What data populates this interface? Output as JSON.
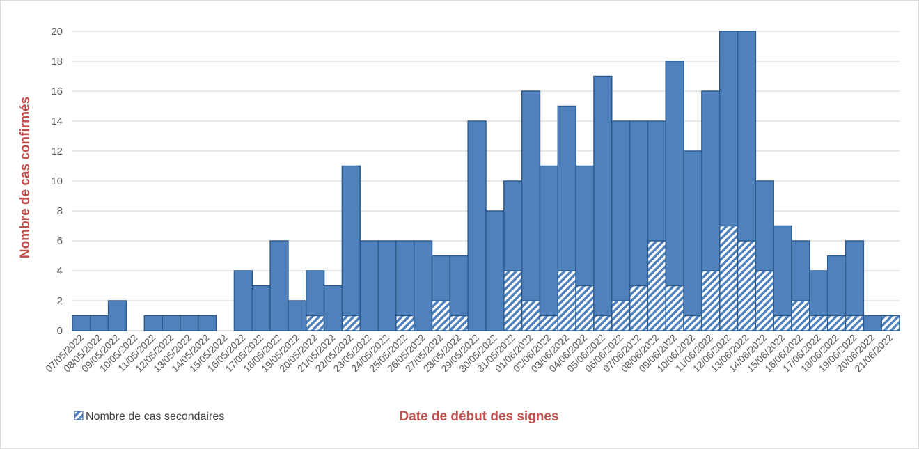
{
  "chart_data": {
    "type": "bar",
    "stacked_overlay": true,
    "xlabel": "Date de début des signes",
    "ylabel": "Nombre de cas confirmés",
    "ylim": [
      0,
      20
    ],
    "yticks": [
      0,
      2,
      4,
      6,
      8,
      10,
      12,
      14,
      16,
      18,
      20
    ],
    "grid": true,
    "legend_position": "bottom-left",
    "colors": {
      "bar": "#4f81bd",
      "bar_edge": "#2f5c8f",
      "title": "#c0504d",
      "grid": "#d9d9d9"
    },
    "categories": [
      "07/05/2022",
      "08/05/2022",
      "09/05/2022",
      "10/05/2022",
      "11/05/2022",
      "12/05/2022",
      "13/05/2022",
      "14/05/2022",
      "15/05/2022",
      "16/05/2022",
      "17/05/2022",
      "18/05/2022",
      "19/05/2022",
      "20/05/2022",
      "21/05/2022",
      "22/05/2022",
      "23/05/2022",
      "24/05/2022",
      "25/05/2022",
      "26/05/2022",
      "27/05/2022",
      "28/05/2022",
      "29/05/2022",
      "30/05/2022",
      "31/05/2022",
      "01/06/2022",
      "02/06/2022",
      "03/06/2022",
      "04/06/2022",
      "05/06/2022",
      "06/06/2022",
      "07/06/2022",
      "08/06/2022",
      "09/06/2022",
      "10/06/2022",
      "11/06/2022",
      "12/06/2022",
      "13/06/2022",
      "14/06/2022",
      "15/06/2022",
      "16/06/2022",
      "17/06/2022",
      "18/06/2022",
      "19/06/2022",
      "20/06/2022",
      "21/06/2022"
    ],
    "series": [
      {
        "values": [
          1,
          1,
          2,
          0,
          1,
          1,
          1,
          1,
          0,
          4,
          3,
          6,
          2,
          4,
          3,
          11,
          6,
          6,
          6,
          6,
          5,
          5,
          14,
          8,
          10,
          16,
          11,
          15,
          11,
          17,
          14,
          14,
          14,
          18,
          12,
          16,
          20,
          20,
          10,
          7,
          6,
          4,
          5,
          6,
          1,
          1
        ]
      },
      {
        "name": "Nombre de cas secondaires",
        "pattern": "hatched",
        "values": [
          0,
          0,
          0,
          0,
          0,
          0,
          0,
          0,
          0,
          0,
          0,
          0,
          0,
          1,
          0,
          1,
          0,
          0,
          1,
          0,
          2,
          1,
          0,
          0,
          4,
          2,
          1,
          4,
          3,
          1,
          2,
          3,
          6,
          3,
          1,
          4,
          7,
          6,
          4,
          1,
          2,
          1,
          1,
          1,
          0,
          1
        ]
      }
    ]
  }
}
